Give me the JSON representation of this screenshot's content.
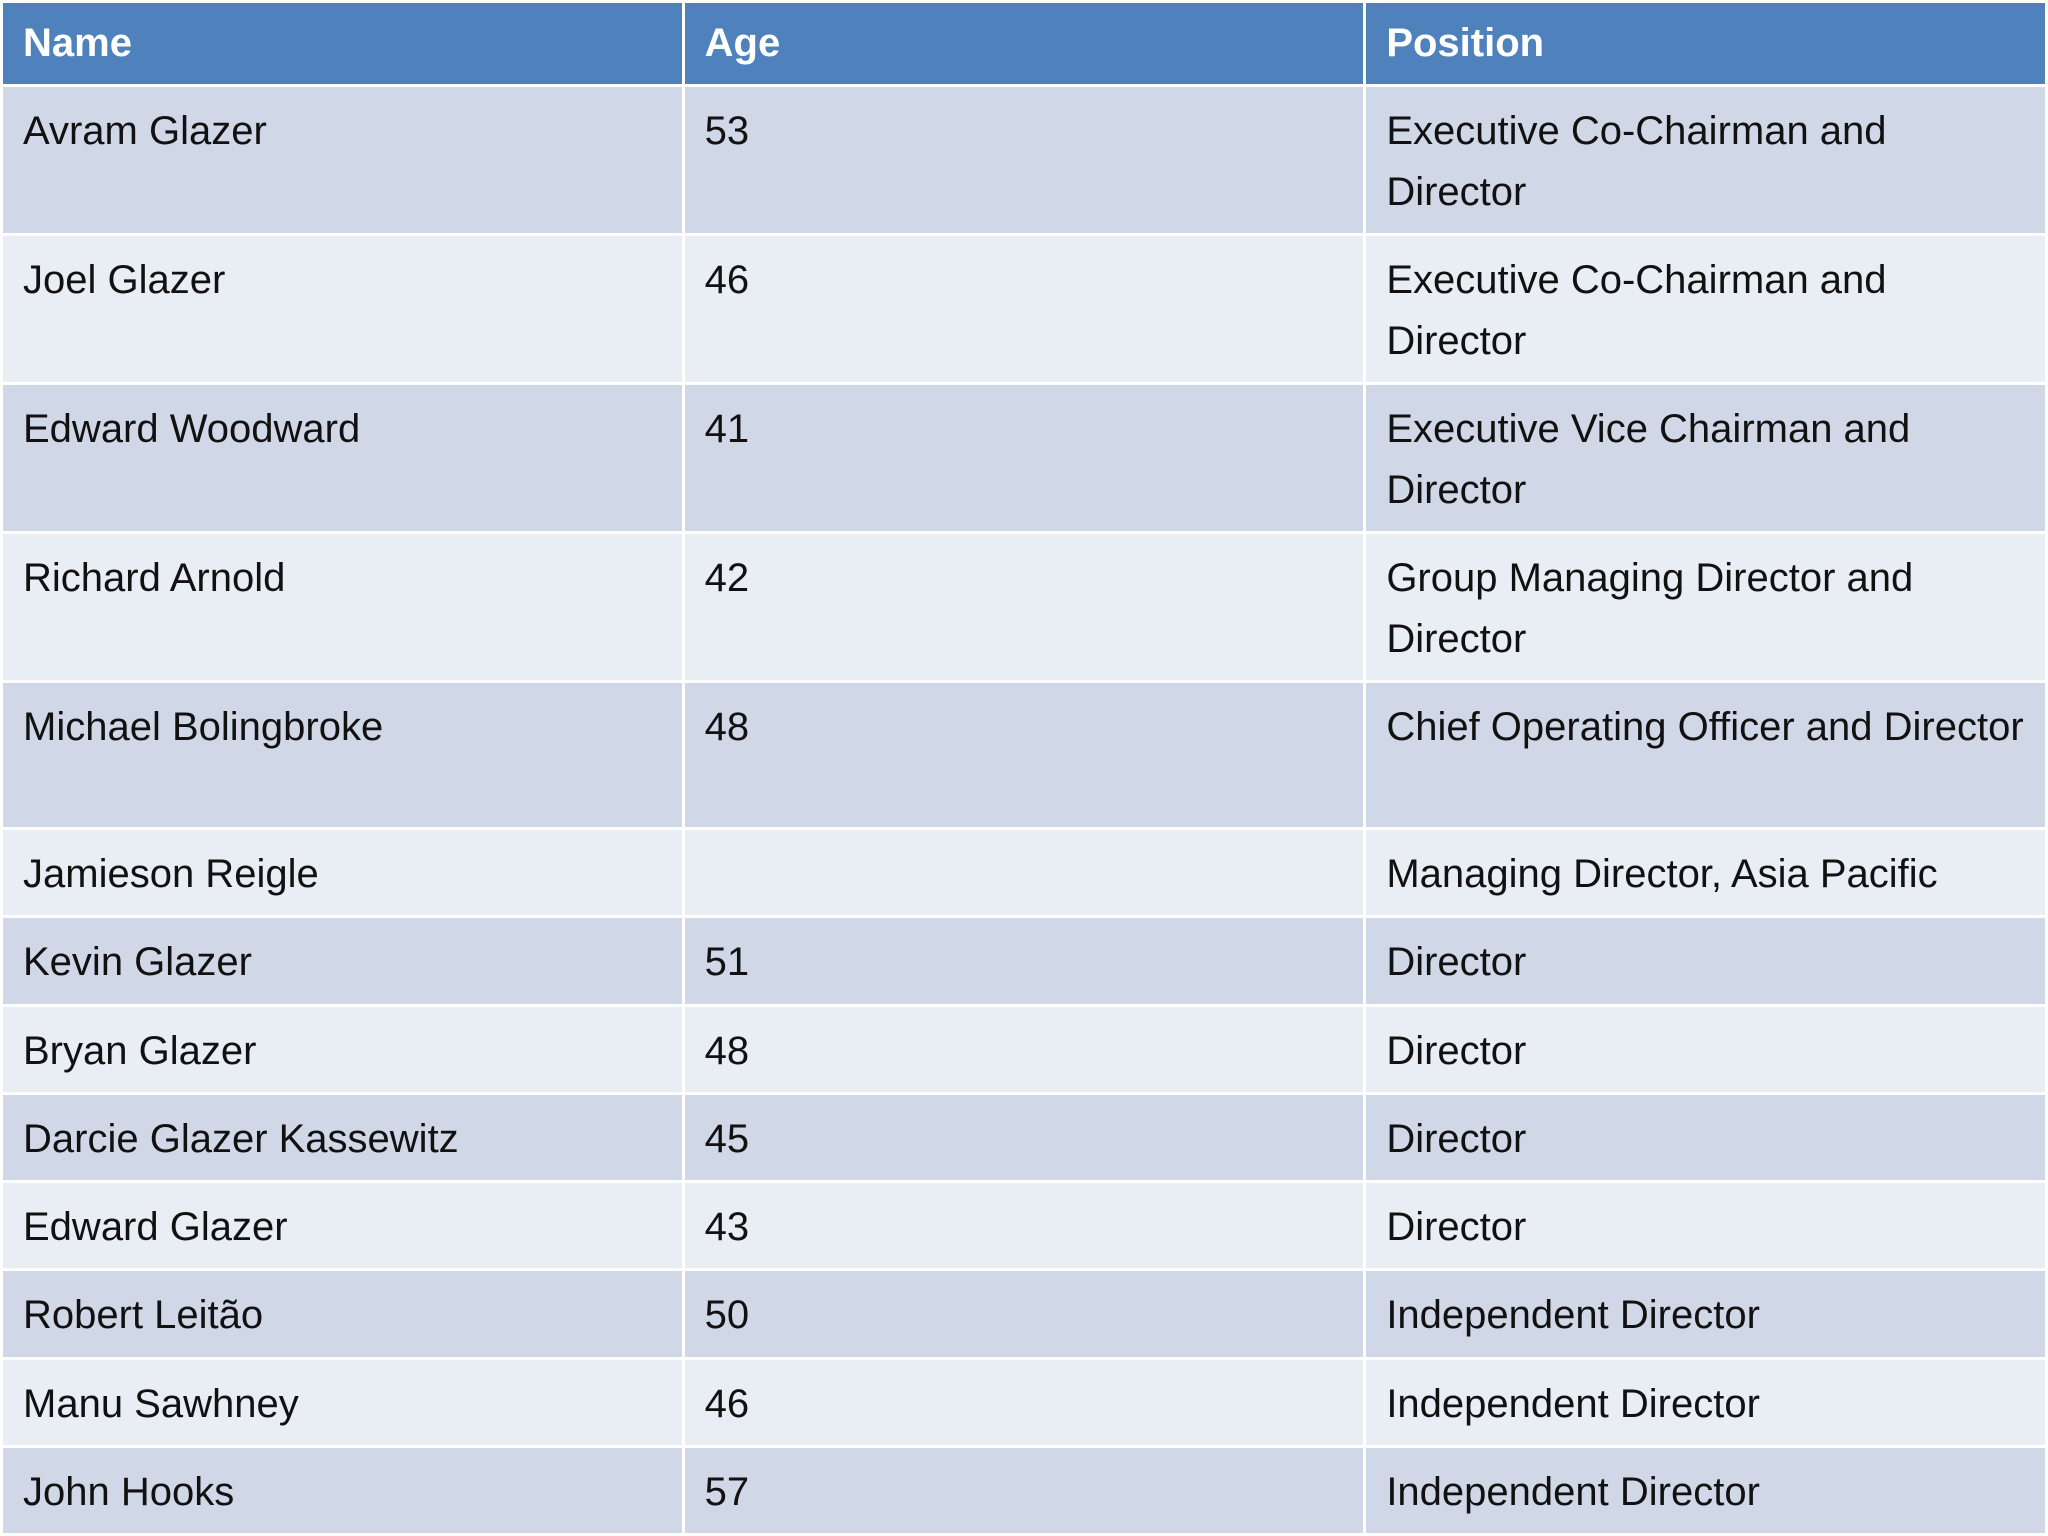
{
  "table": {
    "header": [
      "Name",
      "Age",
      "Position"
    ],
    "rows": [
      [
        "Avram Glazer",
        53,
        "Executive Co-Chairman and Director"
      ],
      [
        "Joel Glazer",
        46,
        "Executive Co-Chairman and Director"
      ],
      [
        "Edward Woodward",
        41,
        "Executive Vice Chairman and Director"
      ],
      [
        "Richard Arnold",
        42,
        "Group Managing Director and Director"
      ],
      [
        "Michael Bolingbroke",
        48,
        "Chief Operating Officer and Director"
      ],
      [
        "Jamieson Reigle",
        null,
        "Managing Director, Asia Pacific"
      ],
      [
        "Kevin Glazer",
        51,
        "Director"
      ],
      [
        "Bryan Glazer",
        48,
        "Director"
      ],
      [
        "Darcie Glazer Kassewitz",
        45,
        "Director"
      ],
      [
        "Edward Glazer",
        43,
        "Director"
      ],
      [
        "Robert Leitão",
        50,
        "Independent Director"
      ],
      [
        "Manu Sawhney",
        46,
        "Independent Director"
      ],
      [
        "John Hooks",
        57,
        "Independent Director"
      ]
    ]
  }
}
